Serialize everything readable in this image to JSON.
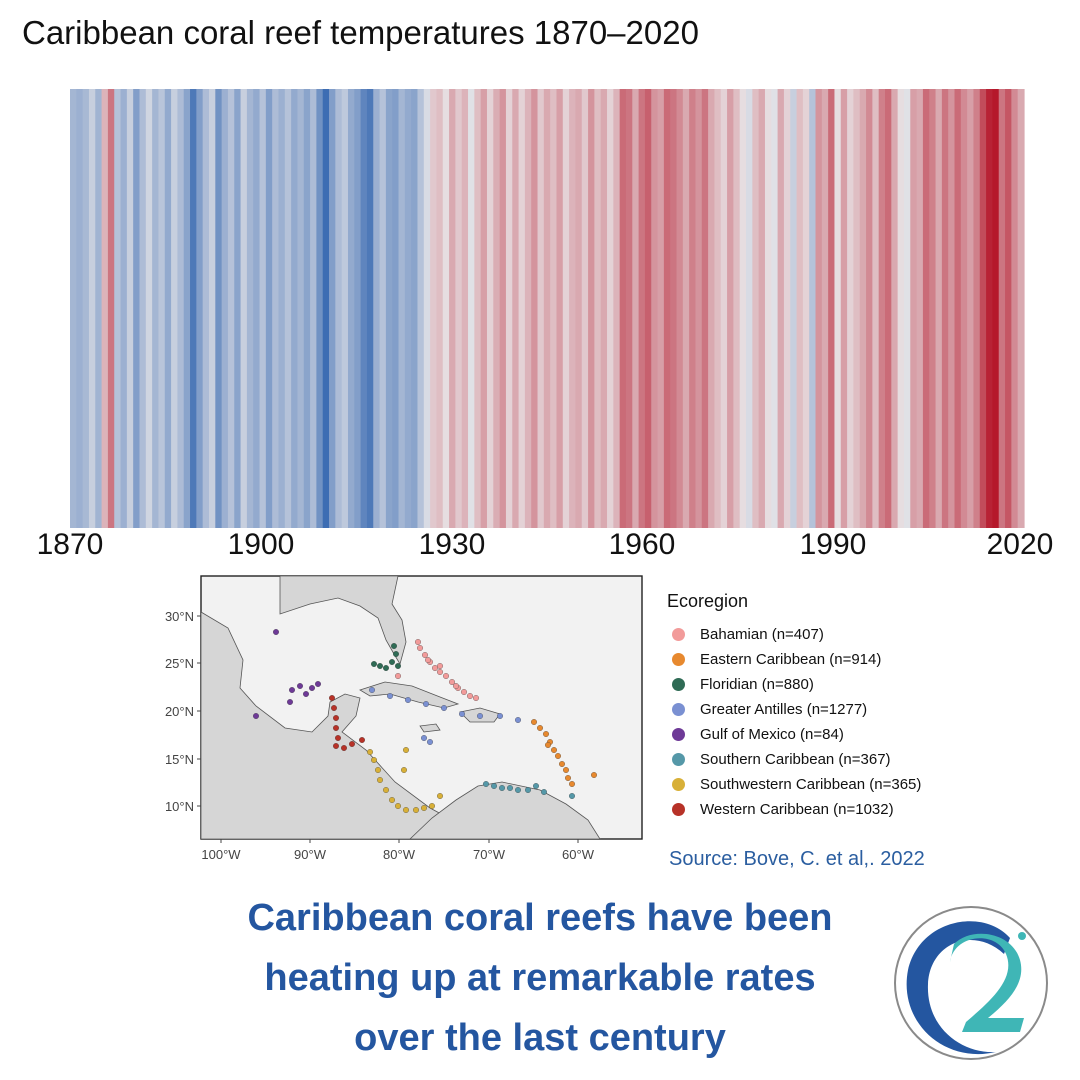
{
  "title": "Caribbean coral reef temperatures 1870–2020",
  "chart_data": {
    "type": "heatmap",
    "title": "Caribbean coral reef temperatures 1870–2020",
    "x_start": 1870,
    "x_end": 2020,
    "x_ticks": [
      "1870",
      "1900",
      "1930",
      "1960",
      "1990",
      "2020"
    ],
    "anomaly_by_year_1870_onward": [
      -0.4,
      -0.45,
      -0.38,
      -0.2,
      -0.42,
      0.25,
      0.55,
      -0.3,
      -0.45,
      -0.2,
      -0.6,
      -0.35,
      -0.15,
      -0.4,
      -0.28,
      -0.5,
      -0.2,
      -0.35,
      -0.55,
      -0.9,
      -0.6,
      -0.35,
      -0.2,
      -0.7,
      -0.45,
      -0.3,
      -0.55,
      -0.2,
      -0.4,
      -0.5,
      -0.3,
      -0.6,
      -0.35,
      -0.45,
      -0.3,
      -0.5,
      -0.4,
      -0.55,
      -0.35,
      -0.7,
      -1.0,
      -0.6,
      -0.35,
      -0.25,
      -0.5,
      -0.6,
      -0.8,
      -0.9,
      -0.45,
      -0.3,
      -0.55,
      -0.6,
      -0.4,
      -0.5,
      -0.55,
      -0.3,
      -0.1,
      0.15,
      0.2,
      0.05,
      0.3,
      0.15,
      0.25,
      -0.05,
      0.2,
      0.35,
      0.1,
      0.28,
      0.4,
      0.1,
      0.3,
      0.1,
      0.25,
      0.4,
      0.15,
      0.3,
      0.2,
      0.35,
      0.1,
      0.25,
      0.3,
      0.15,
      0.4,
      0.2,
      0.3,
      0.1,
      0.25,
      0.6,
      0.55,
      0.3,
      0.55,
      0.65,
      0.4,
      0.35,
      0.6,
      0.55,
      0.45,
      0.3,
      0.5,
      0.4,
      0.55,
      0.3,
      0.2,
      0.1,
      0.35,
      0.2,
      0.05,
      -0.1,
      0.2,
      0.3,
      0.05,
      -0.05,
      0.3,
      0.1,
      -0.2,
      0.2,
      0.1,
      -0.3,
      0.4,
      0.3,
      0.6,
      0.05,
      0.35,
      0.1,
      0.2,
      0.3,
      0.45,
      0.2,
      0.5,
      0.6,
      0.3,
      0.05,
      -0.05,
      0.35,
      0.3,
      0.6,
      0.5,
      0.3,
      0.55,
      0.4,
      0.6,
      0.45,
      0.35,
      0.5,
      0.75,
      0.95,
      1.0,
      0.55,
      0.7,
      0.45,
      0.3
    ]
  },
  "map": {
    "lat_labels": [
      "30°N",
      "25°N",
      "20°N",
      "15°N",
      "10°N"
    ],
    "lon_labels": [
      "100°W",
      "90°W",
      "80°W",
      "70°W",
      "60°W"
    ]
  },
  "legend": {
    "title": "Ecoregion",
    "items": [
      {
        "label": "Bahamian (n=407)",
        "color": "#f29b9a"
      },
      {
        "label": "Eastern Caribbean (n=914)",
        "color": "#e7892f"
      },
      {
        "label": "Floridian (n=880)",
        "color": "#2f6b55"
      },
      {
        "label": "Greater Antilles (n=1277)",
        "color": "#7a90d2"
      },
      {
        "label": "Gulf of Mexico (n=84)",
        "color": "#6e3a97"
      },
      {
        "label": "Southern Caribbean (n=367)",
        "color": "#5598a8"
      },
      {
        "label": "Southwestern Caribbean (n=365)",
        "color": "#d8b038"
      },
      {
        "label": "Western Caribbean (n=1032)",
        "color": "#b73228"
      }
    ]
  },
  "source": "Source: Bove, C. et al,. 2022",
  "caption": {
    "line1": "Caribbean coral reefs have been",
    "line2": "heating up at remarkable rates",
    "line3": "over the last century"
  },
  "colors": {
    "cold_strong": "#3d6db3",
    "warm_strong": "#b5182b",
    "neutral": "#e9e7e9",
    "caption": "#2456a0",
    "logo_outer": "#2456a0",
    "logo_teal": "#3fb6b6"
  }
}
